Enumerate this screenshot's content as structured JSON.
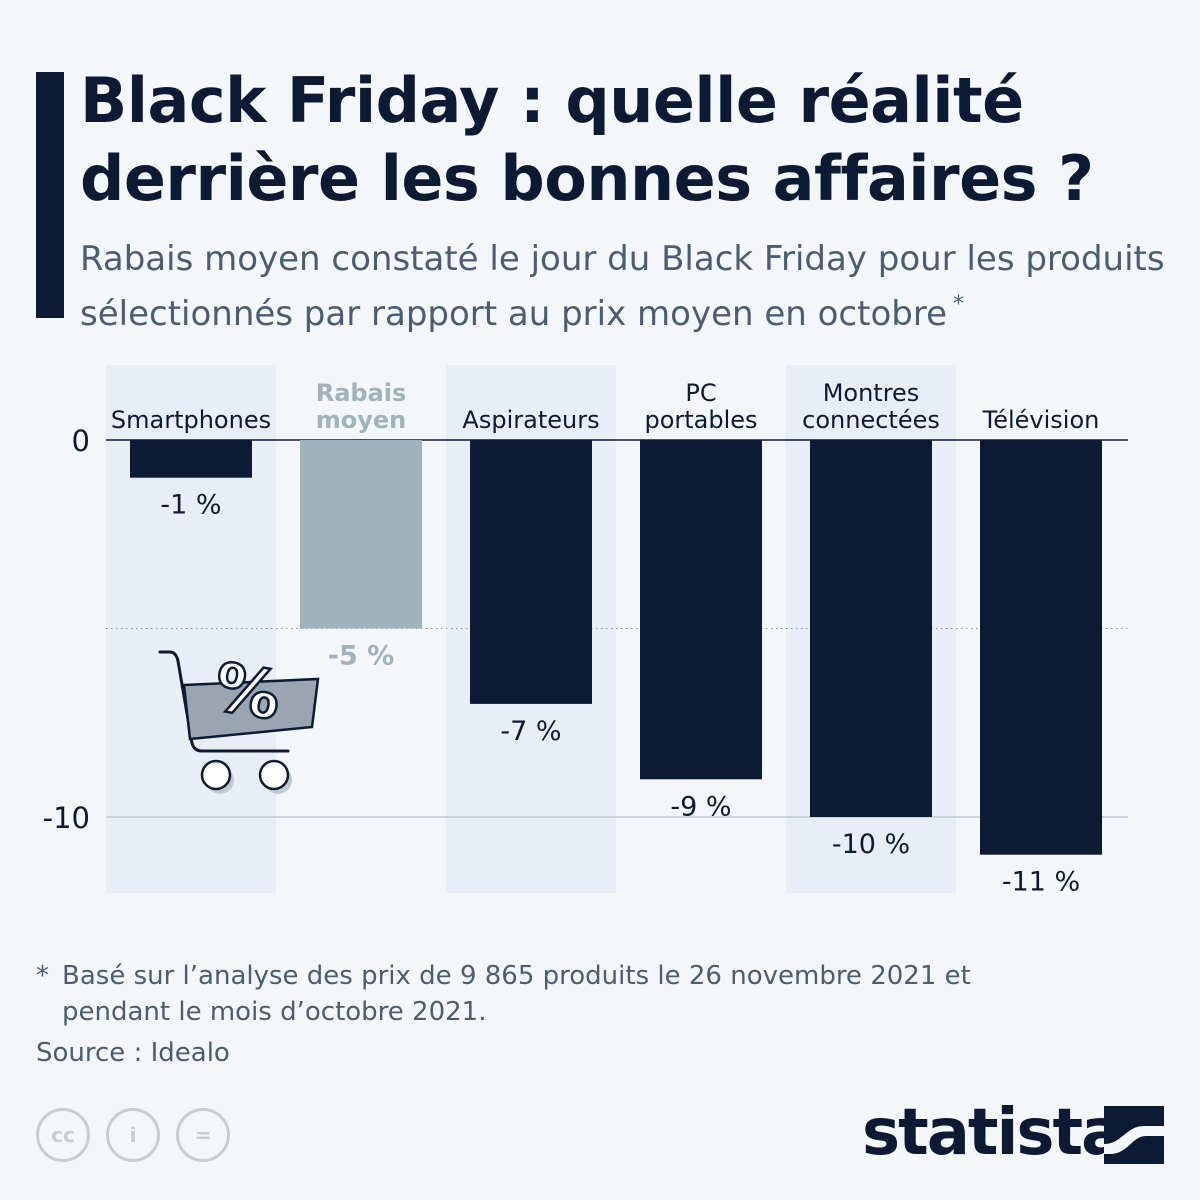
{
  "header": {
    "title": "Black Friday : quelle réalité derrière les bonnes affaires ?",
    "subtitle": "Rabais moyen constaté le jour du Black Friday pour les produits sélectionnés par rapport au prix moyen en octobre",
    "subtitle_marker": "*"
  },
  "chart_data": {
    "type": "bar",
    "categories": [
      "Smartphones",
      "Rabais moyen",
      "Aspirateurs",
      "PC portables",
      "Montres connectées",
      "Télévision"
    ],
    "category_lines": [
      [
        "Smartphones"
      ],
      [
        "Rabais",
        "moyen"
      ],
      [
        "Aspirateurs"
      ],
      [
        "PC",
        "portables"
      ],
      [
        "Montres",
        "connectées"
      ],
      [
        "Télévision"
      ]
    ],
    "values": [
      -1,
      -5,
      -7,
      -9,
      -10,
      -11
    ],
    "data_labels": [
      "-1 %",
      "-5 %",
      "-7 %",
      "-9 %",
      "-10 %",
      "-11 %"
    ],
    "highlight_index": 1,
    "y_ticks": [
      0,
      -10
    ],
    "y_tick_labels": [
      "0",
      "-10"
    ],
    "ylim": [
      -12,
      0
    ],
    "colors": {
      "bar": "#0c1a33",
      "highlight": "#9eb3ba",
      "band": "#e9eef6",
      "grid": "#b7c0cc"
    }
  },
  "footnote": {
    "marker": "*",
    "text": "Basé sur l’analyse des prix de 9 865 produits le 26 novembre 2021 et pendant le mois d’octobre 2021."
  },
  "source": "Source : Idealo",
  "license_icons": [
    "cc-icon",
    "attribution-icon",
    "no-derivatives-icon"
  ],
  "license_glyphs": [
    "cc",
    "i",
    "="
  ],
  "brand": {
    "name": "statista"
  }
}
